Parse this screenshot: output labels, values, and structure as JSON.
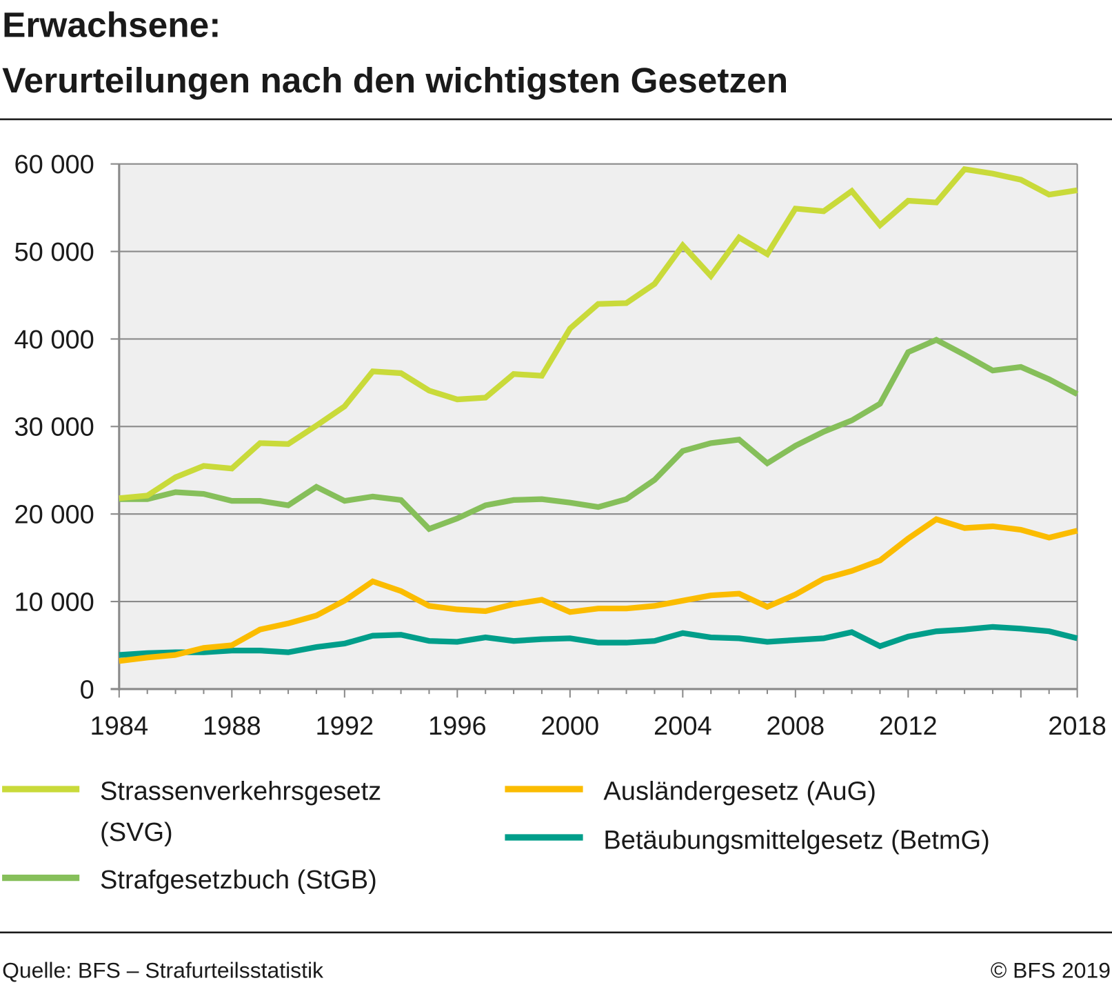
{
  "title_line1": "Erwachsene:",
  "title_line2": "Verurteilungen nach den wichtigsten Gesetzen",
  "source": "Quelle: BFS – Strafurteilsstatistik",
  "copyright": "© BFS 2019",
  "chart_data": {
    "type": "line",
    "title": "Erwachsene: Verurteilungen nach den wichtigsten Gesetzen",
    "xlabel": "",
    "ylabel": "",
    "xlim": [
      1984,
      2018
    ],
    "ylim": [
      0,
      60000
    ],
    "grid": true,
    "legend_position": "bottom",
    "x_tick_labels": [
      "1984",
      "1988",
      "1992",
      "1996",
      "2000",
      "2004",
      "2008",
      "2012",
      "2018"
    ],
    "y_tick_labels": [
      "0",
      "10 000",
      "20 000",
      "30 000",
      "40 000",
      "50 000",
      "60 000"
    ],
    "x": [
      1984,
      1985,
      1986,
      1987,
      1988,
      1989,
      1990,
      1991,
      1992,
      1993,
      1994,
      1995,
      1996,
      1997,
      1998,
      1999,
      2000,
      2001,
      2002,
      2003,
      2004,
      2005,
      2006,
      2007,
      2008,
      2009,
      2010,
      2011,
      2012,
      2013,
      2014,
      2015,
      2016,
      2017,
      2018
    ],
    "series": [
      {
        "name": "Strassenverkehrsgesetz (SVG)",
        "name_line1": "Strassenverkehrsgesetz",
        "name_line2": "(SVG)",
        "color": "#c9da3a",
        "values": [
          21800,
          22100,
          24200,
          25500,
          25200,
          28100,
          28000,
          30100,
          32300,
          36300,
          36100,
          34100,
          33100,
          33300,
          36000,
          35800,
          41200,
          44000,
          44100,
          46300,
          50700,
          47200,
          51600,
          49700,
          54900,
          54600,
          56900,
          53000,
          55800,
          55600,
          59400,
          58900,
          58200,
          56500,
          57000
        ]
      },
      {
        "name": "Strafgesetzbuch (StGB)",
        "color": "#86bf5a",
        "values": [
          21700,
          21700,
          22500,
          22300,
          21500,
          21500,
          21000,
          23100,
          21500,
          22000,
          21600,
          18300,
          19500,
          21000,
          21600,
          21700,
          21300,
          20800,
          21700,
          23900,
          27200,
          28100,
          28500,
          25800,
          27800,
          29400,
          30700,
          32600,
          38500,
          39900,
          38200,
          36400,
          36800,
          35400,
          33700
        ]
      },
      {
        "name": "Ausländergesetz (AuG)",
        "color": "#fbbc00",
        "values": [
          3200,
          3600,
          3900,
          4700,
          5000,
          6800,
          7500,
          8400,
          10100,
          12300,
          11200,
          9500,
          9100,
          8900,
          9700,
          10200,
          8800,
          9200,
          9200,
          9500,
          10100,
          10700,
          10900,
          9400,
          10800,
          12600,
          13500,
          14700,
          17200,
          19400,
          18400,
          18600,
          18200,
          17300,
          18100
        ]
      },
      {
        "name": "Betäubungsmittelgesetz (BetmG)",
        "color": "#009e8a",
        "values": [
          3900,
          4100,
          4200,
          4200,
          4400,
          4400,
          4200,
          4800,
          5200,
          6100,
          6200,
          5500,
          5400,
          5900,
          5500,
          5700,
          5800,
          5300,
          5300,
          5500,
          6400,
          5900,
          5800,
          5400,
          5600,
          5800,
          6500,
          4900,
          6000,
          6600,
          6800,
          7100,
          6900,
          6600,
          5800
        ]
      }
    ]
  }
}
